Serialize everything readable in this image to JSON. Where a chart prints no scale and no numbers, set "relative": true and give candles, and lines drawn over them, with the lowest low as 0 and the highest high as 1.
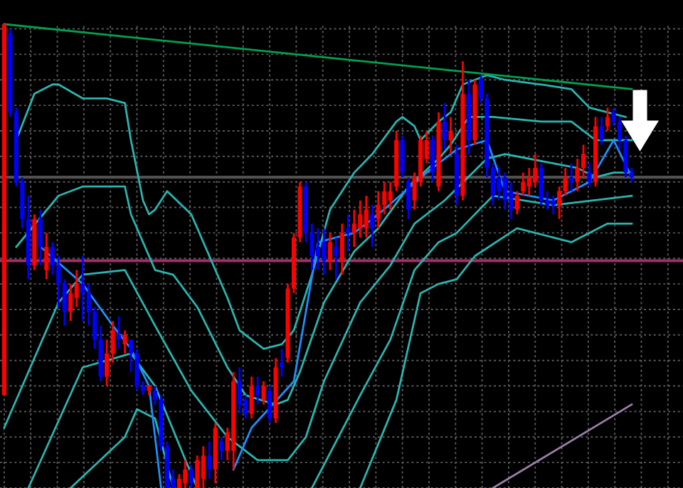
{
  "chart_data": {
    "type": "candlestick",
    "relative": true,
    "grid": true,
    "tick_labels": false,
    "categories": [
      null,
      null,
      null,
      null,
      null,
      null,
      null,
      null,
      null,
      null,
      null,
      null,
      null,
      null,
      null,
      null,
      null,
      null,
      null,
      null,
      null,
      null,
      null,
      null,
      null,
      null,
      null,
      null,
      null,
      null,
      null,
      null,
      null,
      null,
      null,
      null,
      null,
      null,
      null,
      null,
      null,
      null,
      null,
      null,
      null,
      null,
      null,
      null,
      null,
      null,
      null,
      null,
      null,
      null,
      null,
      null,
      null,
      null,
      null,
      null,
      null,
      null,
      null,
      null,
      null,
      null,
      null,
      null,
      null,
      null,
      null,
      null,
      null,
      null,
      null,
      null,
      null,
      null,
      null,
      null,
      null,
      null,
      null,
      null,
      null,
      null,
      null,
      null,
      null,
      null,
      null,
      null,
      null,
      null,
      null,
      null,
      null,
      null,
      null,
      null,
      null,
      null,
      null,
      null,
      null
    ],
    "ohlc": [
      [
        0.2,
        1.0,
        0.2,
        1.0
      ],
      [
        0.98,
        0.99,
        0.8,
        0.81
      ],
      [
        0.81,
        0.82,
        0.65,
        0.66
      ],
      [
        0.66,
        0.67,
        0.56,
        0.58
      ],
      [
        0.58,
        0.63,
        0.45,
        0.48
      ],
      [
        0.48,
        0.59,
        0.47,
        0.58
      ],
      [
        0.58,
        0.6,
        0.48,
        0.52
      ],
      [
        0.47,
        0.55,
        0.45,
        0.52
      ],
      [
        0.52,
        0.53,
        0.46,
        0.48
      ],
      [
        0.48,
        0.5,
        0.39,
        0.44
      ],
      [
        0.44,
        0.45,
        0.35,
        0.38
      ],
      [
        0.38,
        0.44,
        0.36,
        0.42
      ],
      [
        0.41,
        0.47,
        0.39,
        0.44
      ],
      [
        0.44,
        0.5,
        0.36,
        0.42
      ],
      [
        0.42,
        0.44,
        0.35,
        0.38
      ],
      [
        0.38,
        0.39,
        0.3,
        0.32
      ],
      [
        0.32,
        0.35,
        0.23,
        0.24
      ],
      [
        0.24,
        0.32,
        0.22,
        0.29
      ],
      [
        0.29,
        0.36,
        0.27,
        0.34
      ],
      [
        0.33,
        0.37,
        0.3,
        0.32
      ],
      [
        0.31,
        0.34,
        0.29,
        0.33
      ],
      [
        0.32,
        0.32,
        0.25,
        0.29
      ],
      [
        0.29,
        0.3,
        0.21,
        0.22
      ],
      [
        0.22,
        0.23,
        0.2,
        0.21
      ],
      [
        0.21,
        0.22,
        0.2,
        0.22
      ],
      [
        0.21,
        0.22,
        0.18,
        0.19
      ],
      [
        0.19,
        0.2,
        0.08,
        0.09
      ],
      [
        0.09,
        0.1,
        0,
        0
      ],
      [
        0.02,
        0.04,
        0,
        0
      ],
      [
        0,
        0.03,
        0,
        0.02
      ],
      [
        0.01,
        0.06,
        0,
        0.04
      ],
      [
        0.04,
        0.05,
        0,
        0.01
      ],
      [
        0,
        0.07,
        0,
        0.06
      ],
      [
        0.02,
        0.09,
        0,
        0.07
      ],
      [
        0.07,
        0.1,
        0.02,
        0.04
      ],
      [
        0.04,
        0.14,
        0.01,
        0.13
      ],
      [
        0.1,
        0.11,
        0.06,
        0.08
      ],
      [
        0.08,
        0.13,
        0.06,
        0.12
      ],
      [
        0.08,
        0.25,
        0.04,
        0.23
      ],
      [
        0.23,
        0.26,
        0.16,
        0.18
      ],
      [
        0.19,
        0.2,
        0.15,
        0.16
      ],
      [
        0.16,
        0.24,
        0.15,
        0.22
      ],
      [
        0.22,
        0.24,
        0.18,
        0.2
      ],
      [
        0.19,
        0.23,
        0.18,
        0.22
      ],
      [
        0.21,
        0.22,
        0.14,
        0.15
      ],
      [
        0.15,
        0.28,
        0.14,
        0.26
      ],
      [
        0.27,
        0.3,
        0.24,
        0.26
      ],
      [
        0.28,
        0.44,
        0.27,
        0.43
      ],
      [
        0.43,
        0.55,
        0.42,
        0.54
      ],
      [
        0.54,
        0.66,
        0.53,
        0.65
      ],
      [
        0.65,
        0.66,
        0.53,
        0.55
      ],
      [
        0.55,
        0.57,
        0.47,
        0.5
      ],
      [
        0.52,
        0.56,
        0.47,
        0.5
      ],
      [
        0.53,
        0.56,
        0.46,
        0.49
      ],
      [
        0.49,
        0.55,
        0.47,
        0.53
      ],
      [
        0.52,
        0.54,
        0.45,
        0.5
      ],
      [
        0.49,
        0.57,
        0.46,
        0.55
      ],
      [
        0.56,
        0.59,
        0.51,
        0.55
      ],
      [
        0.55,
        0.6,
        0.52,
        0.57
      ],
      [
        0.56,
        0.62,
        0.54,
        0.59
      ],
      [
        0.56,
        0.63,
        0.54,
        0.6
      ],
      [
        0.59,
        0.61,
        0.52,
        0.56
      ],
      [
        0.58,
        0.64,
        0.56,
        0.61
      ],
      [
        0.61,
        0.66,
        0.59,
        0.64
      ],
      [
        0.62,
        0.66,
        0.6,
        0.64
      ],
      [
        0.65,
        0.77,
        0.64,
        0.75
      ],
      [
        0.75,
        0.76,
        0.67,
        0.68
      ],
      [
        0.66,
        0.67,
        0.58,
        0.6
      ],
      [
        0.62,
        0.68,
        0.6,
        0.67
      ],
      [
        0.66,
        0.76,
        0.65,
        0.75
      ],
      [
        0.71,
        0.77,
        0.7,
        0.75
      ],
      [
        0.75,
        0.76,
        0.66,
        0.68
      ],
      [
        0.65,
        0.81,
        0.64,
        0.79
      ],
      [
        0.79,
        0.83,
        0.73,
        0.75
      ],
      [
        0.75,
        0.8,
        0.72,
        0.77
      ],
      [
        0.72,
        0.74,
        0.61,
        0.63
      ],
      [
        0.63,
        0.92,
        0.62,
        0.85
      ],
      [
        0.85,
        0.88,
        0.72,
        0.75
      ],
      [
        0.75,
        0.88,
        0.74,
        0.87
      ],
      [
        0.88,
        0.89,
        0.83,
        0.84
      ],
      [
        0.84,
        0.85,
        0.67,
        0.69
      ],
      [
        0.69,
        0.7,
        0.61,
        0.63
      ],
      [
        0.67,
        0.69,
        0.62,
        0.64
      ],
      [
        0.67,
        0.68,
        0.6,
        0.62
      ],
      [
        0.64,
        0.66,
        0.58,
        0.6
      ],
      [
        0.6,
        0.64,
        0.59,
        0.63
      ],
      [
        0.64,
        0.68,
        0.63,
        0.66
      ],
      [
        0.65,
        0.69,
        0.63,
        0.67
      ],
      [
        0.66,
        0.72,
        0.65,
        0.69
      ],
      [
        0.69,
        0.7,
        0.61,
        0.62
      ],
      [
        0.62,
        0.64,
        0.6,
        0.61
      ],
      [
        0.62,
        0.63,
        0.59,
        0.61
      ],
      [
        0.61,
        0.65,
        0.58,
        0.64
      ],
      [
        0.64,
        0.69,
        0.63,
        0.67
      ],
      [
        0.67,
        0.7,
        0.64,
        0.66
      ],
      [
        0.66,
        0.71,
        0.64,
        0.69
      ],
      [
        0.69,
        0.74,
        0.67,
        0.72
      ],
      [
        0.68,
        0.7,
        0.65,
        0.66
      ],
      [
        0.66,
        0.8,
        0.65,
        0.78
      ],
      [
        0.78,
        0.8,
        0.74,
        0.75
      ],
      [
        0.78,
        0.82,
        0.77,
        0.8
      ],
      [
        0.81,
        0.82,
        0.78,
        0.79
      ],
      [
        0.79,
        0.8,
        0.73,
        0.75
      ],
      [
        0.75,
        0.76,
        0.67,
        0.68
      ],
      [
        0.68,
        0.69,
        0.66,
        0.67
      ]
    ],
    "colors": [
      "#ff0000",
      "#0000ff",
      "#0000ff",
      "#0000ff",
      "#0000ff",
      "#ff0000",
      "#0000ff",
      "#ff0000",
      "#0000ff",
      "#0000ff",
      "#0000ff",
      "#ff0000",
      "#ff0000",
      "#0000ff",
      "#0000ff",
      "#0000ff",
      "#0000ff",
      "#ff0000",
      "#ff0000",
      "#0000ff",
      "#ff0000",
      "#0000ff",
      "#0000ff",
      "#0000ff",
      "#ff0000",
      "#0000ff",
      "#0000ff",
      "#0000ff",
      "#0000ff",
      "#ff0000",
      "#ff0000",
      "#0000ff",
      "#ff0000",
      "#ff0000",
      "#0000ff",
      "#ff0000",
      "#0000ff",
      "#ff0000",
      "#ff0000",
      "#0000ff",
      "#0000ff",
      "#ff0000",
      "#0000ff",
      "#ff0000",
      "#0000ff",
      "#ff0000",
      "#0000ff",
      "#ff0000",
      "#ff0000",
      "#ff0000",
      "#0000ff",
      "#0000ff",
      "#0000ff",
      "#0000ff",
      "#ff0000",
      "#0000ff",
      "#ff0000",
      "#0000ff",
      "#ff0000",
      "#ff0000",
      "#ff0000",
      "#0000ff",
      "#ff0000",
      "#ff0000",
      "#ff0000",
      "#ff0000",
      "#0000ff",
      "#0000ff",
      "#ff0000",
      "#ff0000",
      "#ff0000",
      "#0000ff",
      "#ff0000",
      "#0000ff",
      "#ff0000",
      "#0000ff",
      "#ff0000",
      "#0000ff",
      "#ff0000",
      "#0000ff",
      "#0000ff",
      "#0000ff",
      "#0000ff",
      "#0000ff",
      "#0000ff",
      "#ff0000",
      "#ff0000",
      "#ff0000",
      "#ff0000",
      "#0000ff",
      "#0000ff",
      "#0000ff",
      "#ff0000",
      "#ff0000",
      "#0000ff",
      "#ff0000",
      "#ff0000",
      "#0000ff",
      "#ff0000",
      "#0000ff",
      "#ff0000",
      "#0000ff",
      "#0000ff",
      "#0000ff",
      "#0000ff"
    ],
    "series": [
      {
        "type": "line",
        "color": "#2ab5b0",
        "values": [
          null,
          null,
          0.75,
          null,
          null,
          0.85,
          null,
          null,
          0.87,
          0.87,
          null,
          null,
          null,
          0.84,
          null,
          null,
          null,
          0.84,
          null,
          null,
          0.83,
          0.75,
          null,
          0.62,
          0.59,
          0.6,
          null,
          0.64,
          null,
          null,
          null,
          0.59,
          null,
          null,
          0.5,
          null,
          null,
          0.41,
          null,
          0.34,
          null,
          null,
          null,
          0.3,
          null,
          null,
          0.31,
          null,
          0.34,
          null,
          null,
          0.46,
          null,
          null,
          0.6,
          null,
          null,
          null,
          0.68,
          null,
          null,
          0.72,
          null,
          null,
          null,
          0.79,
          0.8,
          null,
          0.78,
          0.75,
          null,
          null,
          0.79,
          null,
          0.81,
          null,
          0.87,
          null,
          null,
          null,
          0.89,
          null,
          null,
          0.88,
          null,
          null,
          null,
          null,
          null,
          0.87,
          null,
          null,
          null,
          null,
          0.86,
          null,
          null,
          0.82,
          null,
          null,
          0.81,
          null,
          null,
          0.8,
          null
        ]
      },
      {
        "type": "line",
        "color": "#2ab5b0",
        "values": [
          null,
          null,
          0.52,
          null,
          null,
          null,
          null,
          null,
          null,
          0.63,
          null,
          null,
          null,
          0.65,
          null,
          null,
          null,
          null,
          null,
          null,
          0.65,
          0.59,
          null,
          null,
          null,
          0.47,
          null,
          null,
          0.46,
          null,
          null,
          null,
          0.39,
          null,
          null,
          null,
          null,
          0.26,
          null,
          null,
          0.2,
          null,
          null,
          null,
          null,
          0.18,
          null,
          0.19,
          null,
          0.25,
          null,
          null,
          null,
          0.4,
          null,
          null,
          null,
          null,
          0.51,
          null,
          null,
          null,
          0.56,
          null,
          null,
          null,
          null,
          0.65,
          null,
          null,
          null,
          null,
          0.71,
          null,
          0.74,
          null,
          null,
          0.8,
          null,
          null,
          null,
          0.8,
          null,
          null,
          null,
          null,
          null,
          null,
          null,
          0.79,
          null,
          null,
          null,
          null,
          0.79,
          null,
          null,
          null,
          0.75,
          null,
          null,
          0.75,
          null,
          null,
          0.75
        ]
      },
      {
        "type": "line",
        "color": "#2ab5b0",
        "values": [
          0.13,
          null,
          null,
          null,
          null,
          null,
          null,
          null,
          null,
          0.4,
          null,
          null,
          null,
          0.46,
          null,
          null,
          null,
          null,
          null,
          null,
          0.47,
          null,
          null,
          null,
          null,
          0.35,
          null,
          null,
          null,
          null,
          null,
          0.21,
          null,
          null,
          null,
          null,
          null,
          0.11,
          null,
          null,
          null,
          null,
          0.06,
          null,
          null,
          null,
          null,
          0.06,
          null,
          null,
          0.11,
          null,
          null,
          0.23,
          null,
          null,
          null,
          null,
          null,
          0.4,
          null,
          null,
          null,
          null,
          0.48,
          null,
          null,
          null,
          0.57,
          null,
          null,
          null,
          null,
          0.62,
          null,
          null,
          null,
          null,
          null,
          null,
          0.71,
          null,
          null,
          0.72,
          null,
          null,
          null,
          null,
          null,
          null,
          null,
          0.7,
          null,
          null,
          null,
          0.69,
          null,
          null,
          0.67,
          null,
          null,
          0.68,
          null,
          null,
          0.68
        ]
      },
      {
        "type": "line",
        "color": "#2ab5b0",
        "values": [
          null,
          null,
          null,
          null,
          0,
          null,
          null,
          null,
          null,
          null,
          null,
          null,
          null,
          0.26,
          null,
          null,
          null,
          null,
          null,
          null,
          null,
          0.29,
          null,
          null,
          null,
          0.22,
          null,
          null,
          null,
          null,
          null,
          0.03,
          0,
          null,
          null,
          null,
          null,
          null,
          null,
          null,
          null,
          null,
          null,
          null,
          null,
          null,
          null,
          null,
          null,
          null,
          null,
          null,
          null,
          null,
          null,
          null,
          null,
          null,
          null,
          null,
          null,
          null,
          null,
          null,
          null,
          null,
          null,
          null,
          null,
          null,
          null,
          null,
          null,
          null,
          null,
          null,
          null,
          null,
          null,
          null,
          null,
          null,
          null,
          null,
          null,
          null,
          null,
          null,
          null,
          null,
          null,
          null,
          null,
          null,
          null,
          null,
          null,
          null,
          null,
          null,
          null,
          null,
          null,
          null,
          null
        ]
      },
      {
        "type": "line",
        "color": "#2ab5b0",
        "values": [
          null,
          null,
          null,
          null,
          null,
          null,
          null,
          null,
          null,
          null,
          null,
          null,
          null,
          null,
          null,
          null,
          null,
          null,
          null,
          null,
          null,
          null,
          null,
          null,
          null,
          null,
          null,
          null,
          null,
          null,
          null,
          null,
          null,
          null,
          null,
          null,
          null,
          null,
          null,
          null,
          null,
          null,
          null,
          null,
          null,
          null,
          null,
          null,
          null,
          null,
          null,
          0,
          null,
          null,
          null,
          null,
          null,
          null,
          null,
          0.2,
          null,
          null,
          null,
          null,
          0.32,
          null,
          null,
          null,
          0.47,
          null,
          null,
          null,
          0.53,
          null,
          null,
          0.55,
          null,
          null,
          null,
          null,
          null,
          0.63,
          null,
          null,
          null,
          null,
          null,
          null,
          null,
          null,
          null,
          0.61,
          null,
          null,
          null,
          null,
          null,
          null,
          null,
          null,
          null,
          null,
          null,
          null,
          0.63
        ]
      },
      {
        "type": "line",
        "color": "#2ab5b0",
        "values": [
          null,
          null,
          null,
          null,
          null,
          null,
          null,
          null,
          null,
          null,
          null,
          0,
          null,
          null,
          null,
          null,
          null,
          null,
          null,
          null,
          0.11,
          null,
          0.17,
          null,
          null,
          0.15,
          null,
          null,
          0,
          null,
          null,
          null,
          null,
          null,
          null,
          null,
          null,
          null,
          null,
          null,
          null,
          null,
          null,
          null,
          null,
          null,
          null,
          null,
          null,
          null,
          null,
          null,
          null,
          null,
          null,
          null,
          null,
          null,
          null,
          null,
          null,
          null,
          null,
          null,
          null,
          null,
          null,
          null,
          null,
          null,
          null,
          null,
          null,
          null,
          null,
          null,
          null,
          null,
          null,
          null,
          null,
          null,
          null,
          null,
          null,
          null,
          null,
          null,
          null,
          null,
          null,
          null,
          null,
          null,
          null,
          null,
          null,
          null,
          null,
          null,
          null,
          null,
          null,
          null,
          null
        ]
      },
      {
        "type": "line",
        "color": "#2ab5b0",
        "values": [
          null,
          null,
          null,
          null,
          null,
          null,
          null,
          null,
          null,
          null,
          null,
          null,
          null,
          null,
          null,
          null,
          null,
          null,
          null,
          null,
          null,
          null,
          null,
          null,
          null,
          null,
          null,
          null,
          null,
          null,
          null,
          null,
          null,
          null,
          null,
          null,
          null,
          null,
          null,
          null,
          null,
          null,
          null,
          null,
          null,
          null,
          null,
          null,
          null,
          null,
          null,
          null,
          null,
          null,
          null,
          null,
          null,
          null,
          null,
          0,
          null,
          null,
          null,
          null,
          null,
          0.19,
          null,
          null,
          null,
          0.42,
          null,
          null,
          0.44,
          null,
          null,
          0.45,
          null,
          null,
          0.5,
          null,
          null,
          null,
          null,
          null,
          null,
          0.56,
          null,
          null,
          null,
          null,
          null,
          null,
          null,
          null,
          0.53,
          null,
          null,
          null,
          null,
          null,
          0.57,
          null,
          null,
          null,
          0.57
        ]
      },
      {
        "type": "line",
        "color": "#1e8fff",
        "values": [
          null,
          null,
          null,
          null,
          null,
          null,
          0.52,
          null,
          null,
          null,
          null,
          null,
          null,
          0.44,
          null,
          null,
          null,
          null,
          0.35,
          null,
          null,
          0.3,
          null,
          null,
          0.22,
          null,
          0,
          null,
          null,
          null,
          null,
          null,
          null,
          null,
          null,
          null,
          null,
          null,
          null,
          null,
          null,
          null,
          null,
          null,
          null,
          null,
          null,
          null,
          null,
          null,
          null,
          null,
          null,
          null,
          null,
          null,
          null,
          null,
          null,
          null,
          null,
          null,
          null,
          null,
          null,
          null,
          null,
          null,
          null,
          null,
          null,
          null,
          null,
          null,
          null,
          null,
          null,
          null,
          null,
          null,
          null,
          null,
          null,
          null,
          null,
          null,
          null,
          null,
          null,
          null,
          null,
          null,
          null,
          null,
          null,
          null,
          null,
          null,
          null,
          null,
          null,
          null,
          null,
          null,
          null
        ]
      },
      {
        "type": "line",
        "color": "#1e8fff",
        "values": [
          null,
          null,
          null,
          null,
          null,
          null,
          null,
          null,
          null,
          null,
          null,
          null,
          null,
          null,
          null,
          null,
          null,
          null,
          null,
          null,
          null,
          null,
          null,
          null,
          null,
          null,
          null,
          null,
          null,
          null,
          null,
          null,
          null,
          null,
          null,
          null,
          null,
          null,
          0.04,
          null,
          null,
          0.13,
          null,
          null,
          null,
          null,
          null,
          null,
          0.23,
          null,
          null,
          null,
          0.53,
          null,
          null,
          null,
          null,
          null,
          0.55,
          null,
          null,
          null,
          0.59,
          null,
          null,
          null,
          null,
          null,
          null,
          null,
          0.68,
          null,
          null,
          null,
          null,
          0.73,
          null,
          null,
          null,
          null,
          0.75,
          null,
          null,
          0.64,
          null,
          null,
          null,
          null,
          null,
          null,
          null,
          0.62,
          null,
          null,
          null,
          null,
          null,
          0.66,
          null,
          null,
          null,
          0.75,
          null,
          null,
          0.67
        ]
      },
      {
        "type": "line",
        "color": "#00a050",
        "values": [
          1.0,
          null,
          null,
          null,
          null,
          null,
          null,
          null,
          null,
          null,
          null,
          null,
          null,
          null,
          null,
          null,
          null,
          null,
          null,
          null,
          null,
          null,
          null,
          null,
          null,
          null,
          null,
          null,
          null,
          null,
          null,
          null,
          null,
          null,
          null,
          null,
          null,
          null,
          null,
          null,
          null,
          null,
          null,
          null,
          null,
          null,
          null,
          null,
          null,
          null,
          null,
          null,
          null,
          null,
          null,
          null,
          null,
          null,
          null,
          null,
          null,
          null,
          null,
          null,
          null,
          null,
          null,
          null,
          null,
          null,
          null,
          null,
          null,
          null,
          null,
          null,
          null,
          null,
          null,
          null,
          null,
          null,
          null,
          null,
          null,
          null,
          null,
          null,
          null,
          null,
          null,
          null,
          null,
          null,
          null,
          null,
          null,
          null,
          null,
          null,
          null,
          null,
          null,
          null,
          0.86
        ]
      },
      {
        "type": "line",
        "color": "#9a7fa8",
        "values": [
          null,
          null,
          null,
          null,
          null,
          null,
          null,
          null,
          null,
          null,
          null,
          null,
          null,
          null,
          null,
          null,
          null,
          null,
          null,
          null,
          null,
          null,
          null,
          null,
          null,
          null,
          null,
          null,
          null,
          null,
          null,
          null,
          null,
          null,
          null,
          null,
          null,
          null,
          null,
          null,
          null,
          null,
          null,
          null,
          null,
          null,
          null,
          null,
          null,
          null,
          null,
          null,
          null,
          null,
          null,
          null,
          null,
          null,
          null,
          null,
          null,
          null,
          null,
          null,
          null,
          null,
          null,
          null,
          null,
          null,
          null,
          null,
          null,
          null,
          null,
          null,
          null,
          null,
          null,
          null,
          null,
          0,
          null,
          null,
          null,
          null,
          null,
          null,
          null,
          null,
          null,
          null,
          null,
          null,
          null,
          null,
          null,
          null,
          null,
          null,
          null,
          null,
          null,
          null,
          0.18
        ]
      }
    ],
    "ref_lines": [
      {
        "axis": "y",
        "value": 0.67,
        "color": "#505050"
      },
      {
        "axis": "y",
        "value": 0.49,
        "color": "#a03066"
      }
    ]
  }
}
